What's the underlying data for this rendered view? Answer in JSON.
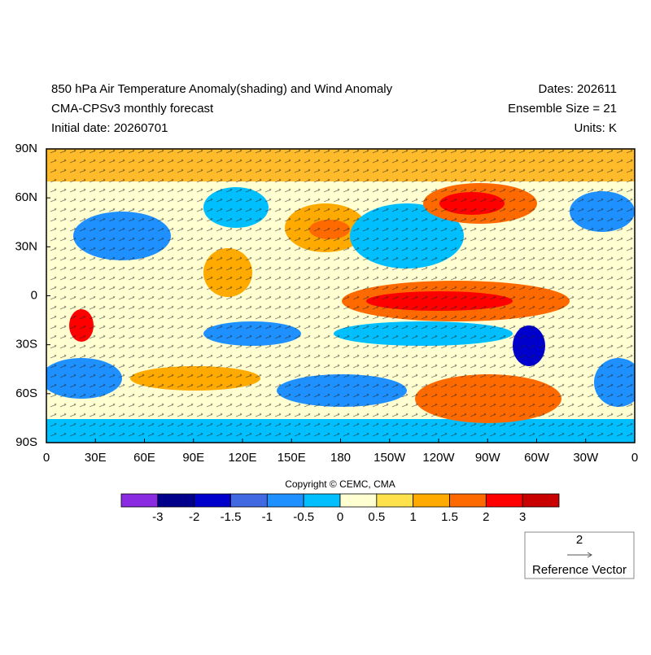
{
  "header": {
    "title": "850 hPa Air Temperature Anomaly(shading) and Wind Anomaly",
    "subtitle": "CMA-CPSv3 monthly forecast",
    "initial_date": "Initial date: 20260701",
    "dates": "Dates: 202611",
    "ensemble": "Ensemble Size = 21",
    "units": "Units: K"
  },
  "map": {
    "lat_labels": [
      "90N",
      "60N",
      "30N",
      "0",
      "30S",
      "60S",
      "90S"
    ],
    "lon_labels": [
      "0",
      "30E",
      "60E",
      "90E",
      "120E",
      "150E",
      "180",
      "150W",
      "120W",
      "90W",
      "60W",
      "30W",
      "0"
    ]
  },
  "copyright": "Copyright © CEMC, CMA",
  "colorbar": {
    "levels": [
      -3,
      -2,
      -1.5,
      -1,
      -0.5,
      0,
      0.5,
      1,
      1.5,
      2,
      3
    ],
    "colors": [
      "#8a2be2",
      "#00008b",
      "#0000cd",
      "#4169e1",
      "#1e90ff",
      "#00bfff",
      "#ffffd2",
      "#ffe14b",
      "#ffaa00",
      "#ff6a00",
      "#ff0000",
      "#c80000"
    ]
  },
  "reference_vector": {
    "magnitude": 2,
    "label": "Reference Vector"
  }
}
